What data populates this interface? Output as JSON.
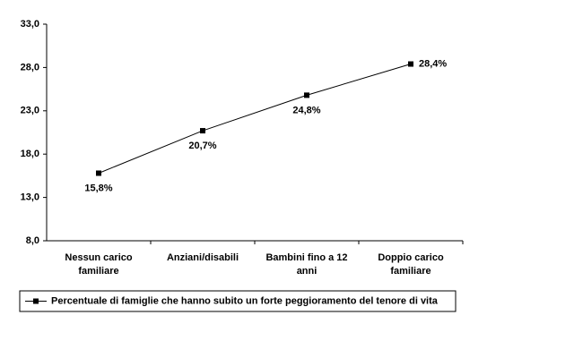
{
  "chart_data": {
    "type": "line",
    "categories": [
      "Nessun carico familiare",
      "Anziani/disabili",
      "Bambini fino a 12 anni",
      "Doppio carico familiare"
    ],
    "series": [
      {
        "name": "Percentuale di famiglie che hanno subito un forte peggioramento del tenore di vita",
        "color": "#000000",
        "values": [
          15.8,
          20.7,
          24.8,
          28.4
        ],
        "value_labels": [
          "15,8%",
          "20,7%",
          "24,8%",
          "28,4%"
        ]
      }
    ],
    "ylim": [
      8,
      33
    ],
    "yticks": [
      {
        "value": 8,
        "label": "8,0"
      },
      {
        "value": 13,
        "label": "13,0"
      },
      {
        "value": 18,
        "label": "18,0"
      },
      {
        "value": 23,
        "label": "23,0"
      },
      {
        "value": 28,
        "label": "28,0"
      },
      {
        "value": 33,
        "label": "33,0"
      }
    ],
    "grid": false,
    "legend": "bottom"
  }
}
